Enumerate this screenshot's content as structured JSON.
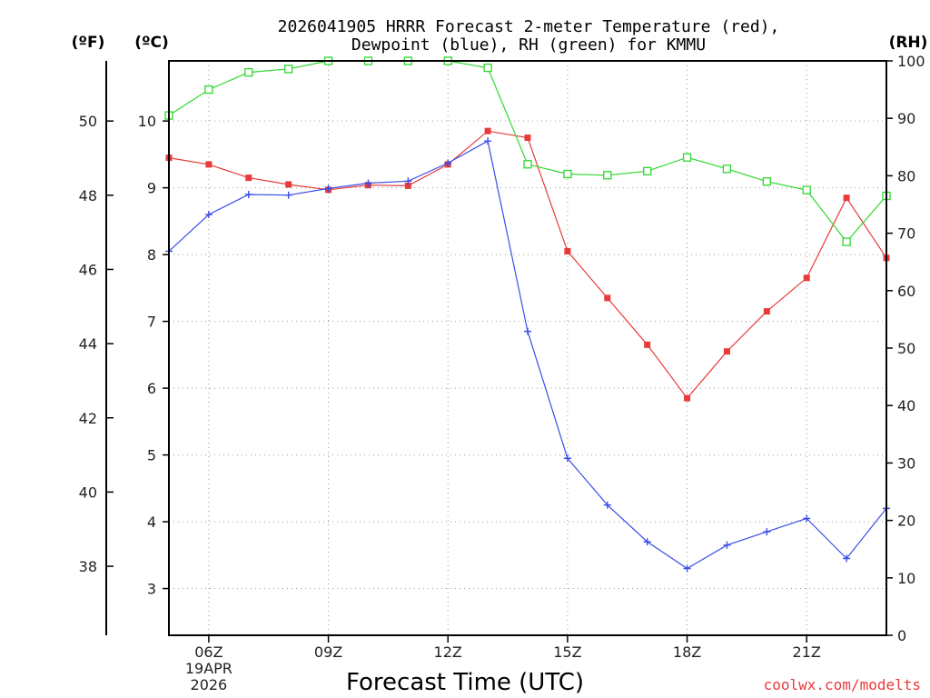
{
  "header": {
    "title_line1": "2026041905 HRRR Forecast 2-meter Temperature (red),",
    "title_line2": "Dewpoint (blue), RH (green) for KMMU",
    "unit_f": "(ºF)",
    "unit_c": "(ºC)",
    "unit_rh": "(RH)"
  },
  "footer": {
    "xlabel": "Forecast Time (UTC)",
    "credit": "coolwx.com/modelts"
  },
  "chart_data": {
    "type": "line",
    "title": "2026041905 HRRR Forecast 2-meter Temperature (red), Dewpoint (blue), RH (green) for KMMU",
    "xlabel": "Forecast Time (UTC)",
    "hours": [
      5,
      6,
      7,
      8,
      9,
      10,
      11,
      12,
      13,
      14,
      15,
      16,
      17,
      18,
      19,
      20,
      21,
      22,
      23
    ],
    "xlim": [
      5,
      23
    ],
    "x_ticks": [
      {
        "hour": 6,
        "label": "06Z",
        "sub": [
          "19APR",
          "2026"
        ]
      },
      {
        "hour": 9,
        "label": "09Z"
      },
      {
        "hour": 12,
        "label": "12Z"
      },
      {
        "hour": 15,
        "label": "15Z"
      },
      {
        "hour": 18,
        "label": "18Z"
      },
      {
        "hour": 21,
        "label": "21Z"
      }
    ],
    "ylim_c": [
      2.3,
      10.9
    ],
    "y_ticks_c": [
      "3",
      "4",
      "5",
      "6",
      "7",
      "8",
      "9",
      "10"
    ],
    "y_ticks_f": [
      "38",
      "40",
      "42",
      "44",
      "46",
      "48",
      "50"
    ],
    "ylim_rh": [
      0,
      100
    ],
    "y_ticks_rh": [
      "0",
      "10",
      "20",
      "30",
      "40",
      "50",
      "60",
      "70",
      "80",
      "90",
      "100"
    ],
    "grid": true,
    "series": [
      {
        "name": "Temperature",
        "axis": "c",
        "color": "#e83a3a",
        "marker": "filled-square",
        "values": [
          9.45,
          9.35,
          9.15,
          9.05,
          8.97,
          9.04,
          9.03,
          9.35,
          9.85,
          9.75,
          8.05,
          7.35,
          6.65,
          5.85,
          6.55,
          7.15,
          7.65,
          8.85,
          7.95
        ]
      },
      {
        "name": "Dewpoint",
        "axis": "c",
        "color": "#3a4ee8",
        "marker": "plus",
        "values": [
          8.05,
          8.6,
          8.9,
          8.89,
          8.99,
          9.07,
          9.1,
          9.37,
          9.7,
          6.85,
          4.95,
          4.25,
          3.7,
          3.3,
          3.65,
          3.85,
          4.05,
          3.45,
          4.2
        ]
      },
      {
        "name": "RH",
        "axis": "rh",
        "color": "#2ed82e",
        "marker": "open-square",
        "values": [
          90.5,
          95,
          98,
          98.6,
          100,
          100,
          100,
          100,
          98.8,
          82,
          80.3,
          80.1,
          80.8,
          83.2,
          81.2,
          79,
          77.5,
          68.5,
          76.5
        ]
      }
    ]
  }
}
